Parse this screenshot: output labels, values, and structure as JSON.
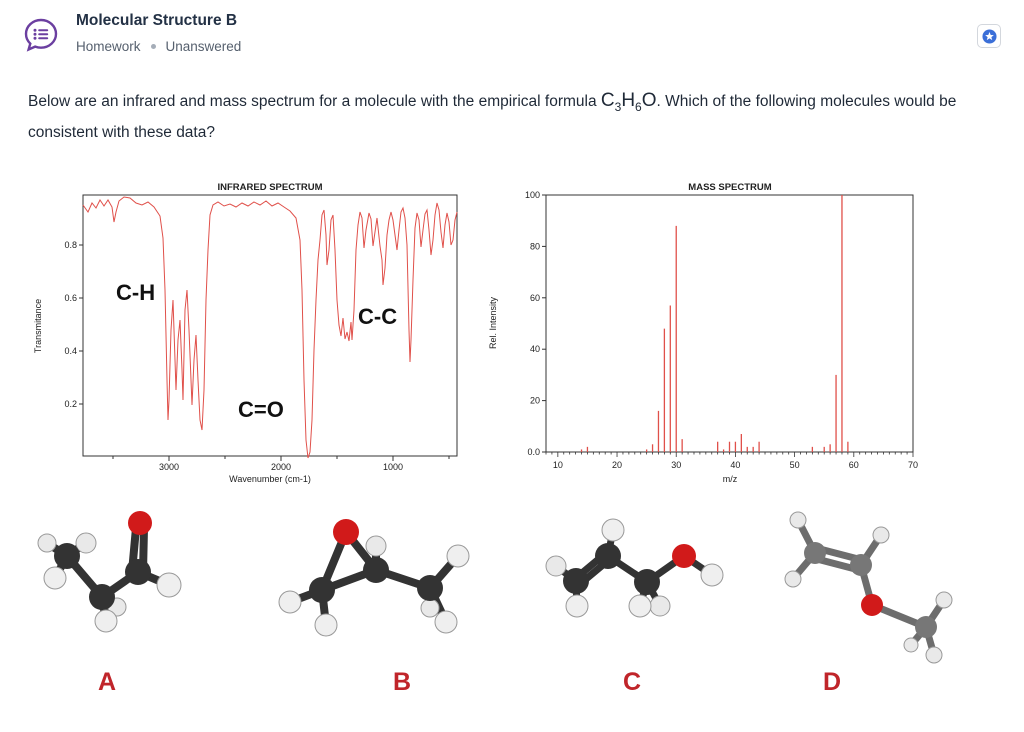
{
  "header": {
    "title": "Molecular Structure B",
    "category": "Homework",
    "status": "Unanswered",
    "icon": "chat-list-icon",
    "favorite_icon": "star-badge-icon"
  },
  "question": {
    "text_before": "Below are an infrared and mass spectrum for a molecule with the empirical formula ",
    "formula": {
      "c": "C",
      "c_sub": "3",
      "h": "H",
      "h_sub": "6",
      "o": "O"
    },
    "text_after": ". Which of the following molecules would be consistent with these data?"
  },
  "ir_spectrum": {
    "title": "INFRARED SPECTRUM",
    "xlabel": "Wavenumber (cm-1)",
    "ylabel": "Transmitance",
    "x_ticks": [
      "3000",
      "2000",
      "1000"
    ],
    "y_ticks": [
      "0.8",
      "0.6",
      "0.4",
      "0.2"
    ],
    "annotations": [
      "C-H",
      "C=O",
      "C-C"
    ]
  },
  "chart_data": {
    "type": "bar",
    "title": "MASS SPECTRUM",
    "xlabel": "m/z",
    "ylabel": "Rel. Intensity",
    "xlim": [
      8,
      70
    ],
    "ylim": [
      0,
      100
    ],
    "x_ticks": [
      "10",
      "20",
      "30",
      "40",
      "50",
      "60",
      "70"
    ],
    "y_ticks": [
      "0.0",
      "20",
      "40",
      "60",
      "80",
      "100"
    ],
    "x": [
      14,
      15,
      25,
      26,
      27,
      28,
      29,
      30,
      31,
      37,
      38,
      39,
      40,
      41,
      42,
      43,
      44,
      53,
      55,
      56,
      57,
      58,
      59
    ],
    "values": [
      1,
      2,
      1,
      3,
      16,
      48,
      57,
      88,
      5,
      4,
      1,
      4,
      4,
      7,
      2,
      2,
      4,
      2,
      2,
      3,
      30,
      100,
      4
    ]
  },
  "options": [
    {
      "label": "A",
      "name": "propanal"
    },
    {
      "label": "B",
      "name": "methyloxirane"
    },
    {
      "label": "C",
      "name": "prop-2-en-1-ol"
    },
    {
      "label": "D",
      "name": "methoxyethene"
    }
  ],
  "colors": {
    "spectrum": "#e0504a",
    "option_label": "#c0252a",
    "carbon": "#333333",
    "oxygen": "#d11a1a",
    "hydrogen": "#eeeeee",
    "accent": "#3b6fd8"
  }
}
